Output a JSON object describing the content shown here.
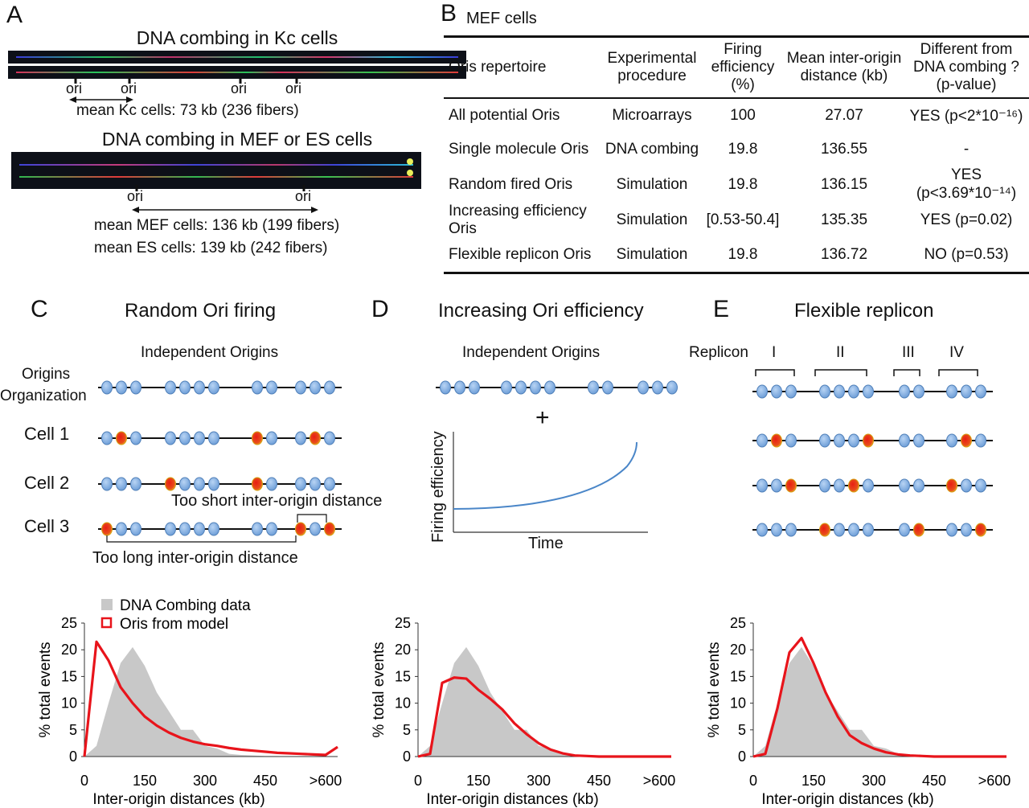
{
  "panelA": {
    "letter": "A",
    "kc_title": "DNA combing in Kc cells",
    "ori_label": "ori",
    "kc_mean": "mean Kc cells: 73 kb (236 fibers)",
    "mef_title": "DNA combing in MEF or ES cells",
    "mef_mean": "mean MEF cells: 136 kb (199 fibers)",
    "es_mean": "mean ES cells: 139 kb (242 fibers)"
  },
  "panelB": {
    "letter": "B",
    "title": "MEF cells",
    "headers": [
      "Oris repertoire",
      "Experimental procedure",
      "Firing efficiency (%)",
      "Mean inter-origin distance (kb)",
      "Different from DNA combing ? (p-value)"
    ],
    "rows": [
      [
        "All potential Oris",
        "Microarrays",
        "100",
        "27.07",
        "YES (p<2*10⁻¹⁶)"
      ],
      [
        "Single molecule Oris",
        "DNA combing",
        "19.8",
        "136.55",
        "-"
      ],
      [
        "Random fired Oris",
        "Simulation",
        "19.8",
        "136.15",
        "YES (p<3.69*10⁻¹⁴)"
      ],
      [
        "Increasing efficiency Oris",
        "Simulation",
        "[0.53-50.4]",
        "135.35",
        "YES (p=0.02)"
      ],
      [
        "Flexible replicon Oris",
        "Simulation",
        "19.8",
        "136.72",
        "NO (p=0.53)"
      ]
    ]
  },
  "panelC": {
    "letter": "C",
    "title": "Random Ori firing",
    "subtitle": "Independent Origins",
    "org_label_1": "Origins",
    "org_label_2": "Organization",
    "cell1": "Cell 1",
    "cell2": "Cell 2",
    "cell3": "Cell 3",
    "too_short": "Too short inter-origin distance",
    "too_long": "Too long inter-origin distance"
  },
  "panelD": {
    "letter": "D",
    "title": "Increasing Ori efficiency",
    "subtitle": "Independent Origins",
    "plus": "+",
    "ylabel": "Firing efficiency",
    "xlabel": "Time"
  },
  "panelE": {
    "letter": "E",
    "title": "Flexible replicon",
    "replicon_label": "Replicon",
    "replicons": [
      "I",
      "II",
      "III",
      "IV"
    ]
  },
  "colors": {
    "gray_fill": "#c8c8c8",
    "model_red": "#e8141b",
    "origin_blue": "#6f9fd8",
    "fired_red": "#e81e14",
    "curve_blue": "#4a86c8"
  },
  "chart_data": [
    {
      "type": "area",
      "legend": [
        "DNA Combing data",
        "Oris from model"
      ],
      "xlabel": "Inter-origin distances (kb)",
      "ylabel": "% total events",
      "xticks": [
        "0",
        "150",
        "300",
        "450",
        ">600"
      ],
      "yticks": [
        "0",
        "5",
        "10",
        "15",
        "20",
        "25"
      ],
      "ylim": [
        0,
        25
      ],
      "xlim": [
        0,
        630
      ],
      "series": [
        {
          "name": "DNA Combing data",
          "x": [
            0,
            30,
            60,
            90,
            120,
            150,
            180,
            210,
            240,
            270,
            300,
            330,
            360,
            390,
            420,
            450,
            480,
            510,
            540,
            570,
            600,
            630
          ],
          "values": [
            0,
            2,
            10,
            17.5,
            20.5,
            17,
            12,
            8.5,
            5,
            5,
            2,
            1.5,
            0.5,
            0.3,
            0.2,
            0.1,
            0.1,
            0,
            0,
            0,
            0,
            0
          ]
        },
        {
          "name": "Oris from model",
          "x": [
            0,
            30,
            60,
            90,
            120,
            150,
            180,
            210,
            240,
            270,
            300,
            330,
            360,
            390,
            420,
            450,
            480,
            510,
            540,
            570,
            600,
            630
          ],
          "values": [
            0,
            21.5,
            18,
            13,
            10,
            7.5,
            5.8,
            4.5,
            3.5,
            2.8,
            2.3,
            2,
            1.6,
            1.3,
            1.1,
            0.9,
            0.7,
            0.6,
            0.5,
            0.4,
            0.3,
            1.8
          ]
        }
      ]
    },
    {
      "type": "area",
      "xlabel": "Inter-origin distances (kb)",
      "ylabel": "% total events",
      "xticks": [
        "0",
        "150",
        "300",
        "450",
        ">600"
      ],
      "yticks": [
        "0",
        "5",
        "10",
        "15",
        "20",
        "25"
      ],
      "ylim": [
        0,
        25
      ],
      "xlim": [
        0,
        630
      ],
      "series": [
        {
          "name": "DNA Combing data",
          "x": [
            0,
            30,
            60,
            90,
            120,
            150,
            180,
            210,
            240,
            270,
            300,
            330,
            360,
            390,
            420,
            450,
            480,
            510,
            540,
            570,
            600,
            630
          ],
          "values": [
            0,
            2,
            10,
            17.5,
            20.5,
            17,
            12,
            8.5,
            5,
            5,
            2,
            1.5,
            0.5,
            0.3,
            0.2,
            0.1,
            0.1,
            0,
            0,
            0,
            0,
            0
          ]
        },
        {
          "name": "Oris from model",
          "x": [
            0,
            30,
            60,
            90,
            120,
            150,
            180,
            210,
            240,
            270,
            300,
            330,
            360,
            390,
            420,
            450,
            480,
            510,
            540,
            570,
            600,
            630
          ],
          "values": [
            0,
            0.5,
            13.8,
            14.8,
            14.6,
            12.5,
            10.8,
            8.8,
            6.2,
            4.2,
            2.5,
            1.3,
            0.6,
            0.2,
            0.1,
            0,
            0,
            0,
            0,
            0,
            0,
            0
          ]
        }
      ]
    },
    {
      "type": "area",
      "xlabel": "Inter-origin distances (kb)",
      "ylabel": "% total events",
      "xticks": [
        "0",
        "150",
        "300",
        "450",
        ">600"
      ],
      "yticks": [
        "0",
        "5",
        "10",
        "15",
        "20",
        "25"
      ],
      "ylim": [
        0,
        25
      ],
      "xlim": [
        0,
        630
      ],
      "series": [
        {
          "name": "DNA Combing data",
          "x": [
            0,
            30,
            60,
            90,
            120,
            150,
            180,
            210,
            240,
            270,
            300,
            330,
            360,
            390,
            420,
            450,
            480,
            510,
            540,
            570,
            600,
            630
          ],
          "values": [
            0,
            2,
            10,
            17.5,
            20.5,
            17,
            12,
            8.5,
            5,
            5,
            2,
            1.5,
            0.5,
            0.3,
            0.2,
            0.1,
            0.1,
            0,
            0,
            0,
            0,
            0
          ]
        },
        {
          "name": "Oris from model",
          "x": [
            0,
            30,
            60,
            90,
            120,
            150,
            180,
            210,
            240,
            270,
            300,
            330,
            360,
            390,
            420,
            450,
            480,
            510,
            540,
            570,
            600,
            630
          ],
          "values": [
            0,
            0.5,
            9,
            19.5,
            22.2,
            17.5,
            12,
            7.5,
            4,
            2.5,
            1.5,
            0.8,
            0.4,
            0.2,
            0.1,
            0,
            0,
            0,
            0,
            0,
            0,
            0
          ]
        }
      ]
    }
  ]
}
